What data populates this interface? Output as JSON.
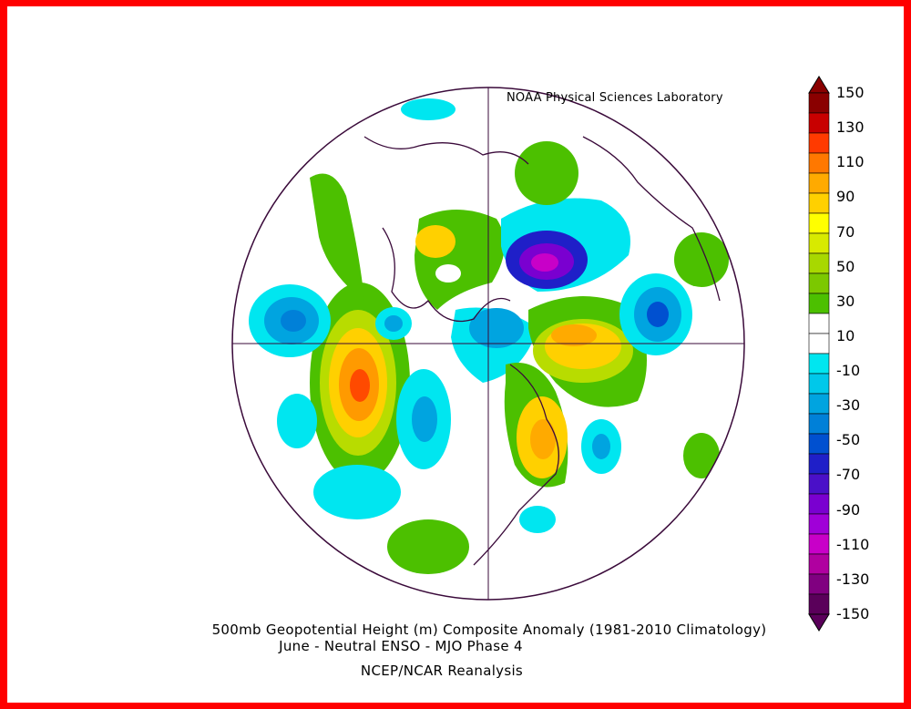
{
  "credit": "NOAA Physical Sciences Laboratory",
  "title_line1": "500mb Geopotential Height (m) Composite Anomaly (1981-2010 Climatology)",
  "title_line2": "June - Neutral ENSO - MJO Phase 4",
  "title_line3": "NCEP/NCAR Reanalysis",
  "colorbar": {
    "labels": [
      "150",
      "130",
      "110",
      "90",
      "70",
      "50",
      "30",
      "10",
      "-10",
      "-30",
      "-50",
      "-70",
      "-90",
      "-110",
      "-130",
      "-150"
    ],
    "colors": [
      "#8a0000",
      "#c80000",
      "#ff3a00",
      "#ff7800",
      "#ffaa00",
      "#ffd000",
      "#ffff00",
      "#d8ea00",
      "#a8d800",
      "#7cc800",
      "#4cc000",
      "#ffffff",
      "#ffffff",
      "#00e6f0",
      "#00c8ea",
      "#00a4e0",
      "#0080d8",
      "#0050d0",
      "#1f1fc8",
      "#4a10c8",
      "#7a00d0",
      "#a000d8",
      "#c800c8",
      "#b000a0",
      "#800080",
      "#5a005a"
    ]
  },
  "colors": {
    "frame": "#ff0000",
    "outline": "#3a0a3a",
    "positive_low": "#4cc000",
    "negative_low": "#00e6f0"
  }
}
